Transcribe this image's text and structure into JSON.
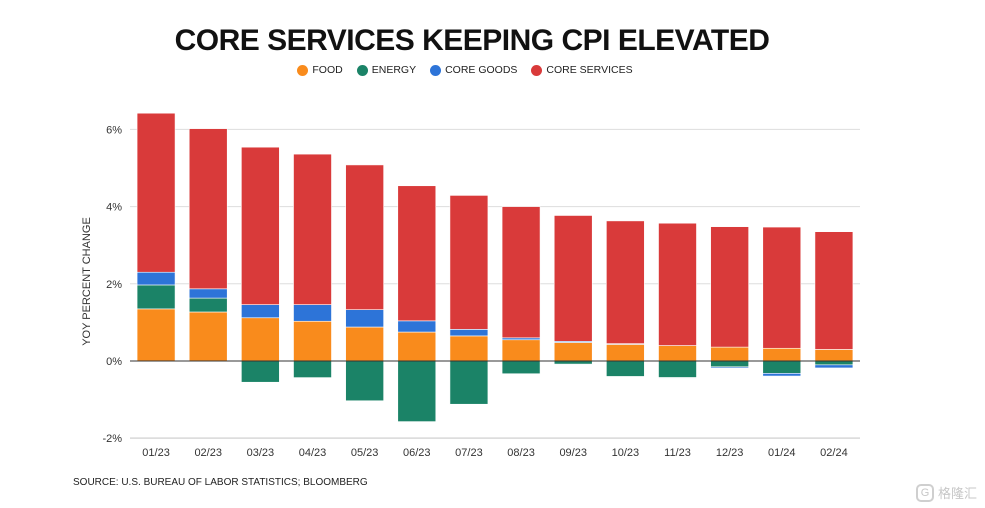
{
  "chart_data": {
    "type": "bar",
    "stacked": true,
    "title": "CORE SERVICES KEEPING CPI ELEVATED",
    "ylabel": "YOY PERCENT CHANGE",
    "xlabel": "",
    "ylim": [
      -2,
      6
    ],
    "yticks": [
      -2,
      0,
      2,
      4,
      6
    ],
    "ytick_labels": [
      "-2%",
      "0%",
      "2%",
      "4%",
      "6%"
    ],
    "categories": [
      "01/23",
      "02/23",
      "03/23",
      "04/23",
      "05/23",
      "06/23",
      "07/23",
      "08/23",
      "09/23",
      "10/23",
      "11/23",
      "12/23",
      "01/24",
      "02/24"
    ],
    "series": [
      {
        "name": "FOOD",
        "color": "#f98b1c",
        "values": [
          1.35,
          1.27,
          1.12,
          1.03,
          0.88,
          0.75,
          0.65,
          0.55,
          0.48,
          0.43,
          0.4,
          0.36,
          0.33,
          0.3
        ]
      },
      {
        "name": "ENERGY",
        "color": "#1b8367",
        "values": [
          0.62,
          0.36,
          -0.55,
          -0.43,
          -1.03,
          -1.57,
          -1.12,
          -0.33,
          -0.08,
          -0.4,
          -0.43,
          -0.15,
          -0.32,
          -0.1
        ]
      },
      {
        "name": "CORE GOODS",
        "color": "#2d74d8",
        "values": [
          0.33,
          0.24,
          0.34,
          0.43,
          0.45,
          0.29,
          0.17,
          0.05,
          0.03,
          0.02,
          -0.01,
          -0.03,
          -0.07,
          -0.08
        ]
      },
      {
        "name": "CORE SERVICES",
        "color": "#d93a3a",
        "values": [
          4.12,
          4.15,
          4.08,
          3.9,
          3.75,
          3.5,
          3.47,
          3.4,
          3.26,
          3.18,
          3.17,
          3.12,
          3.14,
          3.05
        ]
      }
    ],
    "grid": true,
    "legend_position": "top-center",
    "source": "SOURCE: U.S. BUREAU OF LABOR STATISTICS; BLOOMBERG"
  },
  "watermark": {
    "text": "格隆汇",
    "icon": "g-logo-icon"
  }
}
